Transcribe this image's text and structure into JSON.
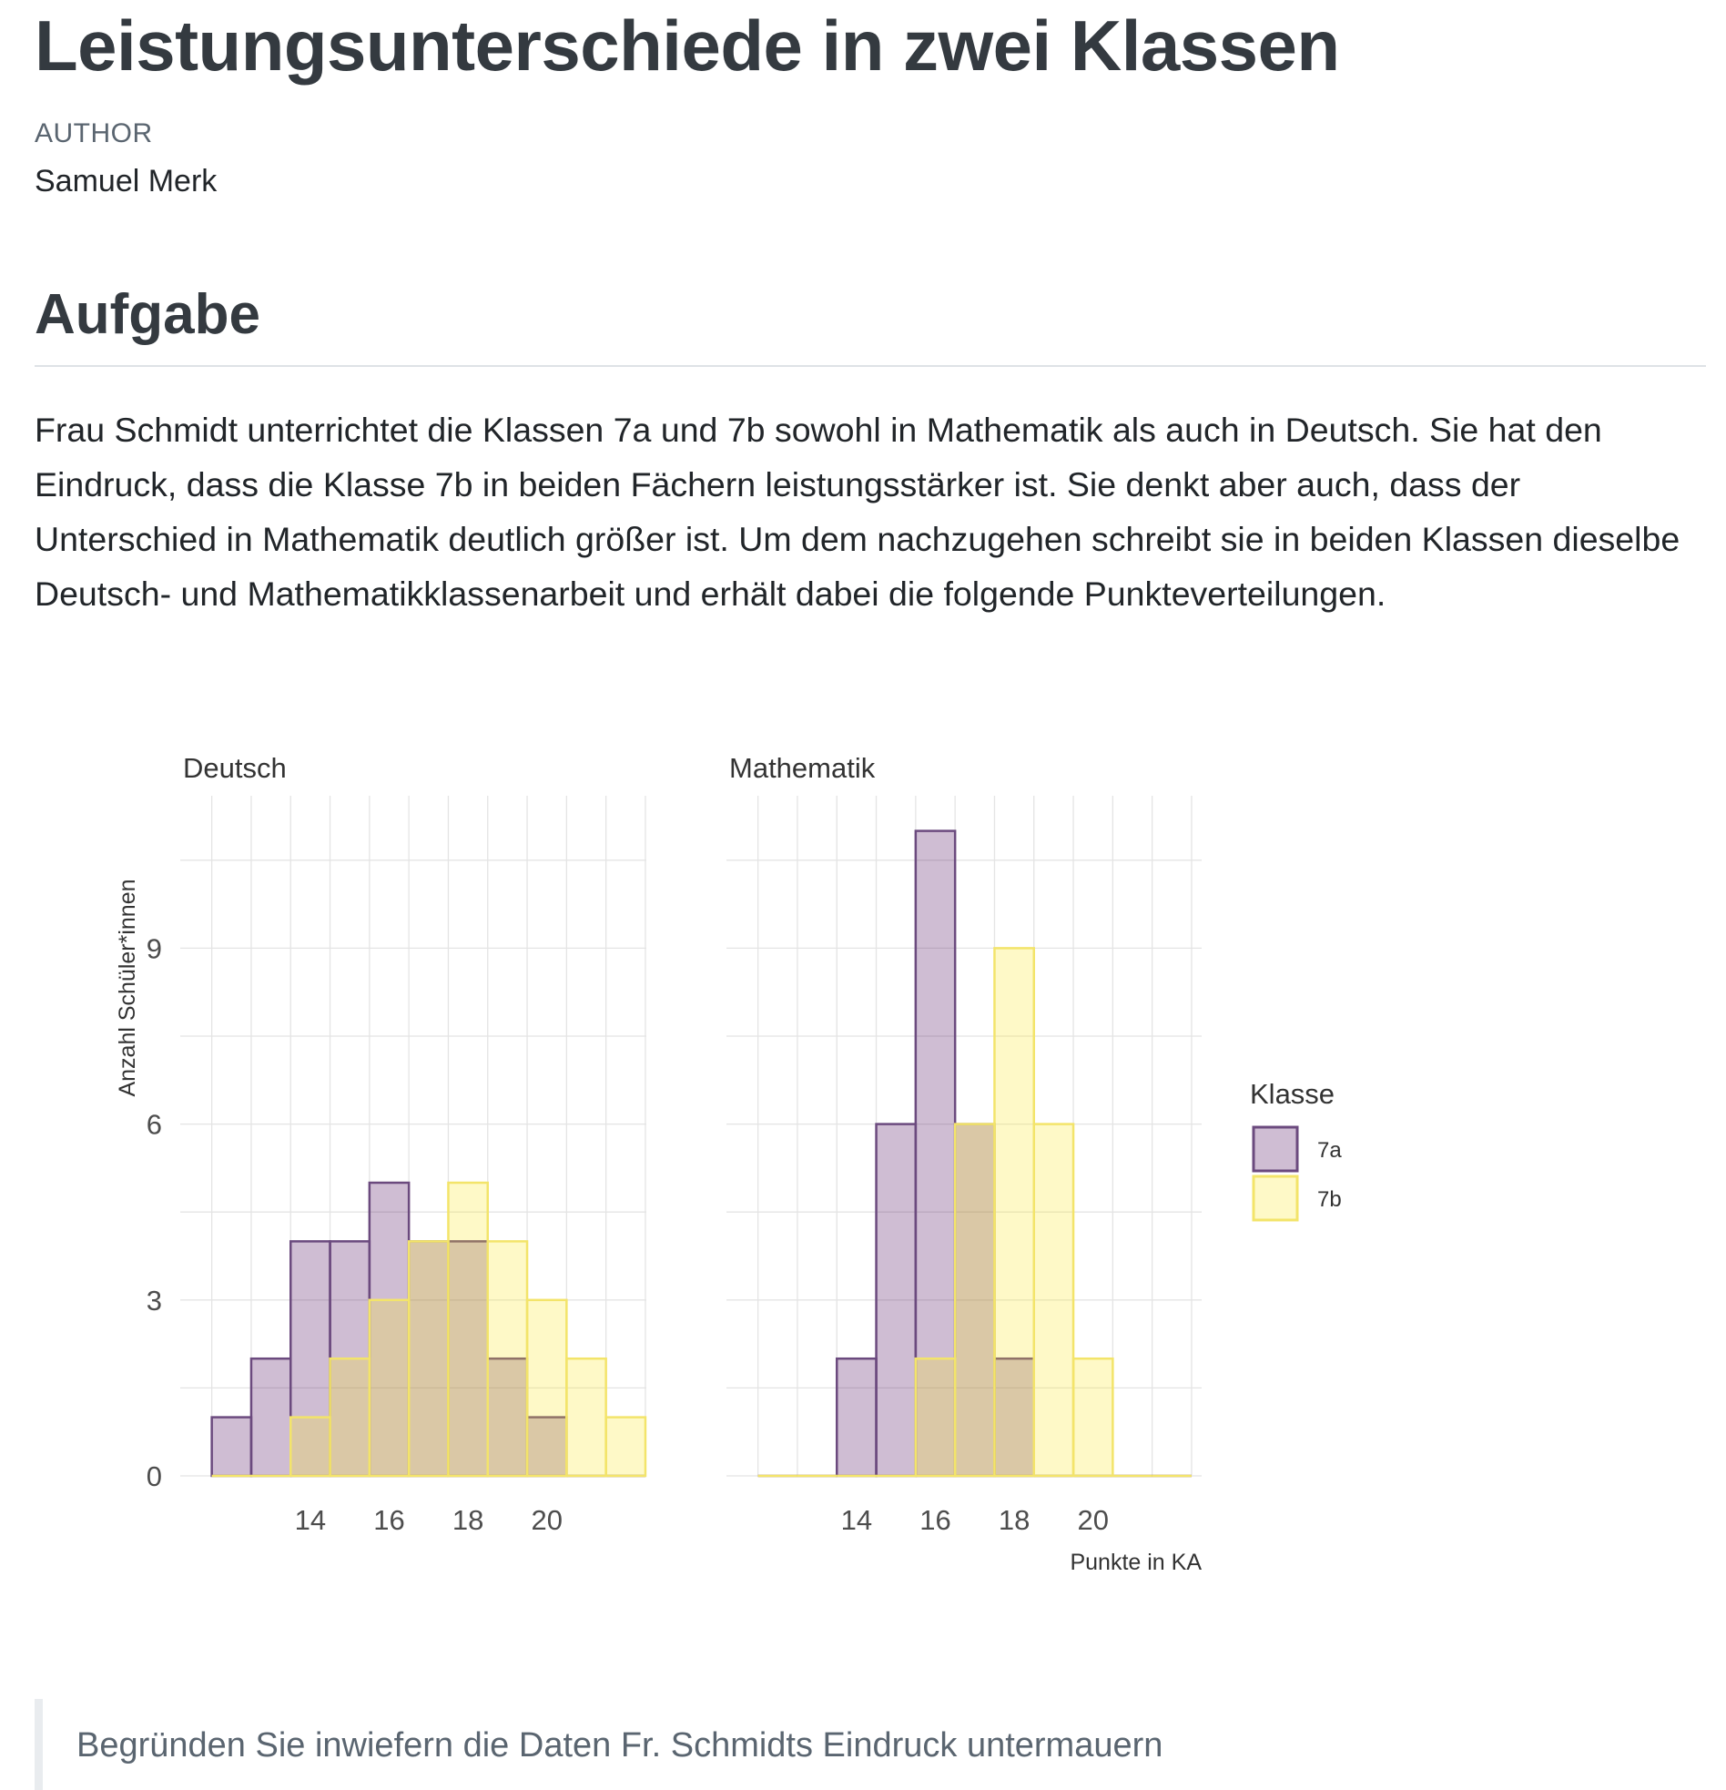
{
  "document": {
    "title": "Leistungsunterschiede in zwei Klassen",
    "author_label": "AUTHOR",
    "author_name": "Samuel Merk",
    "section_heading": "Aufgabe",
    "paragraph": "Frau Schmidt unterrichtet die Klassen 7a und 7b sowohl in Mathematik als auch in Deutsch. Sie hat den Eindruck, dass die Klasse 7b in beiden Fächern leistungsstärker ist. Sie denkt aber auch, dass der Unterschied in Mathematik deutlich größer ist. Um dem nachzugehen schreibt sie in beiden Klassen dieselbe Deutsch- und Mathematikklassenarbeit und erhält dabei die folgende Punkteverteilungen.",
    "callout": "Begründen Sie inwiefern die Daten Fr. Schmidts Eindruck untermauern"
  },
  "chart_data": {
    "type": "bar",
    "subtype": "histogram",
    "ylabel": "Anzahl Schüler*innen",
    "xlabel": "Punkte in KA",
    "legend_title": "Klasse",
    "legend_position": "right",
    "grid": true,
    "y_ticks": [
      0,
      3,
      6,
      9
    ],
    "x_ticks": [
      14,
      16,
      18,
      20
    ],
    "colors": {
      "7a": "#440154",
      "7b": "#FDE725"
    },
    "panels": [
      {
        "title": "Deutsch",
        "x": [
          12,
          13,
          14,
          15,
          16,
          17,
          18,
          19,
          20,
          21,
          22
        ],
        "xlim": [
          11,
          23
        ],
        "ylim": [
          0,
          11.5
        ],
        "series": [
          {
            "name": "7a",
            "values": [
              1,
              2,
              4,
              4,
              5,
              4,
              4,
              2,
              1,
              0,
              0
            ]
          },
          {
            "name": "7b",
            "values": [
              0,
              0,
              1,
              2,
              3,
              4,
              5,
              4,
              3,
              2,
              1
            ]
          }
        ]
      },
      {
        "title": "Mathematik",
        "x": [
          12,
          13,
          14,
          15,
          16,
          17,
          18,
          19,
          20,
          21,
          22
        ],
        "xlim": [
          11,
          23
        ],
        "ylim": [
          0,
          11.5
        ],
        "series": [
          {
            "name": "7a",
            "values": [
              0,
              0,
              2,
              6,
              11,
              6,
              2,
              0,
              0,
              0,
              0
            ]
          },
          {
            "name": "7b",
            "values": [
              0,
              0,
              0,
              0,
              2,
              6,
              9,
              6,
              2,
              0,
              0
            ]
          }
        ]
      }
    ]
  }
}
